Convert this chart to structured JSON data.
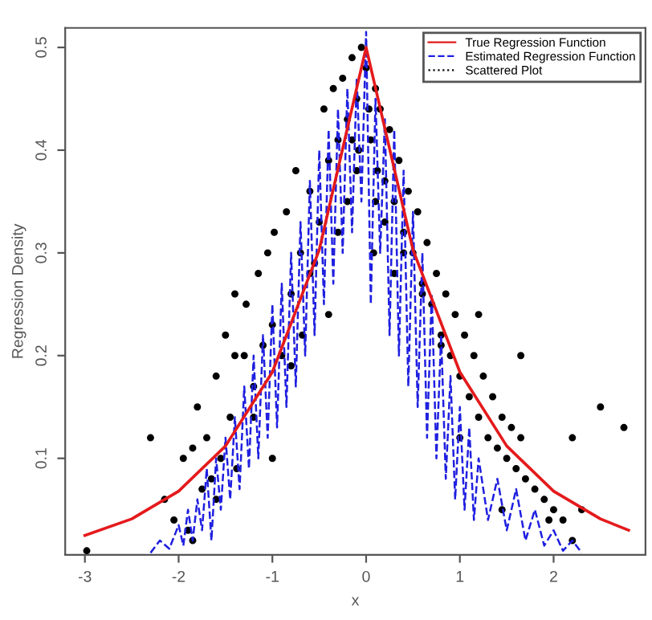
{
  "chart_data": {
    "type": "line",
    "xlabel": "x",
    "ylabel": "Regression Density",
    "xlim": [
      -3.21,
      2.98
    ],
    "ylim": [
      0.006,
      0.519
    ],
    "xticks": [
      {
        "value": -3,
        "label": "-3"
      },
      {
        "value": -2,
        "label": "-2"
      },
      {
        "value": -1,
        "label": "-1"
      },
      0,
      1,
      2
    ],
    "yticks": [
      0.1,
      0.2,
      0.3,
      0.4,
      0.5
    ],
    "grid": false,
    "legend": "top right",
    "series": [
      {
        "type": "scatter",
        "name": "Scattered Plot",
        "color": "#000000",
        "line_style": "dotted",
        "x": [
          -2.98,
          -2.3,
          -2.15,
          -2.05,
          -1.95,
          -1.9,
          -1.85,
          -1.8,
          -1.75,
          -1.7,
          -1.65,
          -1.6,
          -1.55,
          -1.5,
          -1.45,
          -1.4,
          -1.38,
          -1.3,
          -1.28,
          -1.2,
          -1.15,
          -1.1,
          -1.05,
          -1.0,
          -0.98,
          -0.9,
          -0.85,
          -0.8,
          -0.75,
          -0.7,
          -0.68,
          -0.6,
          -0.55,
          -0.5,
          -0.45,
          -0.4,
          -0.35,
          -0.3,
          -0.25,
          -0.2,
          -0.15,
          -0.1,
          -0.08,
          -0.05,
          0.0,
          0.03,
          0.05,
          0.1,
          0.12,
          0.15,
          0.2,
          0.25,
          0.3,
          0.35,
          0.4,
          0.45,
          0.5,
          0.55,
          0.6,
          0.65,
          0.7,
          0.75,
          0.8,
          0.85,
          0.9,
          0.95,
          1.0,
          1.05,
          1.1,
          1.15,
          1.2,
          1.25,
          1.3,
          1.35,
          1.4,
          1.45,
          1.5,
          1.55,
          1.6,
          1.65,
          1.7,
          1.8,
          1.9,
          2.0,
          2.1,
          2.2,
          2.3,
          2.5,
          2.75,
          -1.85,
          -1.6,
          -1.4,
          -1.2,
          -1.0,
          -0.8,
          -0.6,
          -0.4,
          -0.2,
          -0.15,
          0.08,
          0.2,
          0.4,
          0.6,
          0.8,
          1.0,
          1.2,
          1.45,
          1.65,
          1.95,
          2.2,
          -0.3,
          -0.1,
          0.1,
          0.3
        ],
        "values": [
          0.01,
          0.12,
          0.06,
          0.04,
          0.1,
          0.03,
          0.02,
          0.15,
          0.07,
          0.12,
          0.08,
          0.18,
          0.1,
          0.22,
          0.14,
          0.26,
          0.09,
          0.2,
          0.25,
          0.17,
          0.28,
          0.21,
          0.3,
          0.23,
          0.32,
          0.2,
          0.34,
          0.26,
          0.38,
          0.3,
          0.22,
          0.36,
          0.29,
          0.33,
          0.44,
          0.39,
          0.46,
          0.41,
          0.47,
          0.43,
          0.49,
          0.45,
          0.4,
          0.5,
          0.48,
          0.44,
          0.41,
          0.46,
          0.38,
          0.44,
          0.37,
          0.42,
          0.35,
          0.39,
          0.32,
          0.36,
          0.3,
          0.34,
          0.27,
          0.31,
          0.25,
          0.28,
          0.22,
          0.26,
          0.2,
          0.24,
          0.18,
          0.22,
          0.16,
          0.2,
          0.14,
          0.18,
          0.12,
          0.16,
          0.11,
          0.14,
          0.1,
          0.13,
          0.09,
          0.12,
          0.08,
          0.07,
          0.06,
          0.05,
          0.04,
          0.12,
          0.05,
          0.15,
          0.13,
          0.11,
          0.06,
          0.2,
          0.14,
          0.1,
          0.19,
          0.28,
          0.24,
          0.35,
          0.41,
          0.3,
          0.33,
          0.3,
          0.26,
          0.21,
          0.12,
          0.24,
          0.05,
          0.2,
          0.04,
          0.02,
          0.32,
          0.38,
          0.35,
          0.28
        ]
      },
      {
        "name": "True Regression Function",
        "color": "#e41a1c",
        "line_style": "solid",
        "x": [
          -3,
          -2.5,
          -2,
          -1.5,
          -1,
          -0.5,
          0,
          0.5,
          1,
          1.5,
          2,
          2.5,
          2.8
        ],
        "values": [
          0.025,
          0.041,
          0.068,
          0.112,
          0.184,
          0.303,
          0.5,
          0.303,
          0.184,
          0.112,
          0.068,
          0.041,
          0.03
        ]
      },
      {
        "name": "Estimated Regression Function",
        "color": "#1f1fe0",
        "line_style": "dashed",
        "x": [
          -2.3,
          -2.2,
          -2.1,
          -2.0,
          -1.95,
          -1.9,
          -1.85,
          -1.8,
          -1.75,
          -1.7,
          -1.65,
          -1.6,
          -1.55,
          -1.5,
          -1.45,
          -1.4,
          -1.35,
          -1.3,
          -1.25,
          -1.2,
          -1.15,
          -1.1,
          -1.05,
          -1.0,
          -0.95,
          -0.9,
          -0.85,
          -0.8,
          -0.75,
          -0.7,
          -0.65,
          -0.6,
          -0.55,
          -0.5,
          -0.45,
          -0.4,
          -0.35,
          -0.3,
          -0.25,
          -0.2,
          -0.15,
          -0.1,
          -0.05,
          0,
          0.05,
          0.1,
          0.15,
          0.2,
          0.25,
          0.3,
          0.35,
          0.4,
          0.45,
          0.5,
          0.55,
          0.6,
          0.65,
          0.7,
          0.75,
          0.8,
          0.85,
          0.9,
          0.95,
          1.0,
          1.05,
          1.1,
          1.15,
          1.2,
          1.3,
          1.4,
          1.5,
          1.6,
          1.7,
          1.8,
          1.9,
          2.0,
          2.1,
          2.2,
          2.3
        ],
        "values": [
          0.008,
          0.02,
          0.012,
          0.035,
          0.015,
          0.05,
          0.02,
          0.06,
          0.03,
          0.09,
          0.02,
          0.1,
          0.05,
          0.12,
          0.06,
          0.14,
          0.07,
          0.17,
          0.09,
          0.2,
          0.1,
          0.22,
          0.12,
          0.25,
          0.13,
          0.27,
          0.15,
          0.3,
          0.17,
          0.33,
          0.2,
          0.37,
          0.22,
          0.4,
          0.25,
          0.42,
          0.27,
          0.44,
          0.3,
          0.46,
          0.32,
          0.47,
          0.35,
          0.515,
          0.25,
          0.45,
          0.3,
          0.43,
          0.22,
          0.42,
          0.2,
          0.38,
          0.17,
          0.34,
          0.15,
          0.3,
          0.12,
          0.26,
          0.1,
          0.22,
          0.08,
          0.18,
          0.06,
          0.15,
          0.05,
          0.13,
          0.04,
          0.1,
          0.04,
          0.08,
          0.03,
          0.07,
          0.02,
          0.05,
          0.015,
          0.03,
          0.01,
          0.02,
          0.008
        ]
      }
    ]
  }
}
